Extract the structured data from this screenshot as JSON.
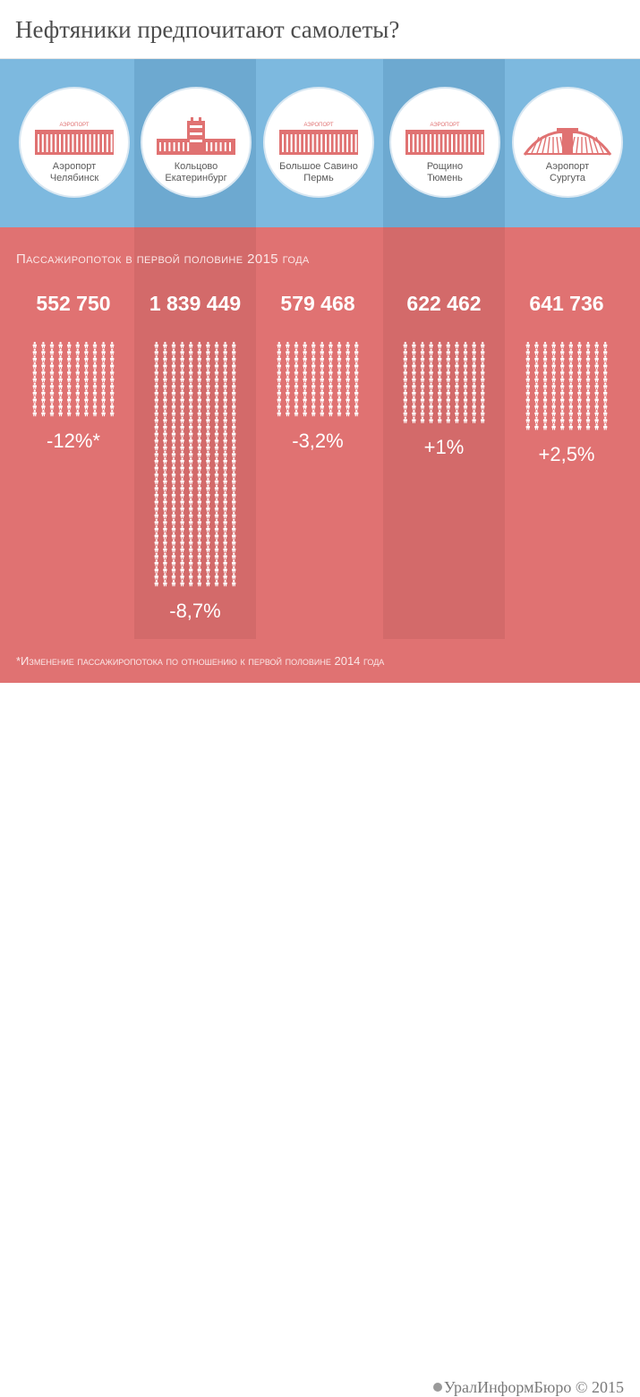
{
  "header": {
    "title": "Нефтяники предпочитают самолеты?"
  },
  "colors": {
    "accent_blue": "#7db9df",
    "accent_red": "#e07272",
    "building_red": "#e07272",
    "text_gray": "#4d4d4d",
    "white": "#ffffff"
  },
  "chart_data": {
    "type": "bar",
    "title": "Пассажиропоток в первой половине 2015 года",
    "categories": [
      {
        "line1": "Аэропорт",
        "line2": "Челябинск"
      },
      {
        "line1": "Кольцово",
        "line2": "Екатеринбург"
      },
      {
        "line1": "Большое Савино",
        "line2": "Пермь"
      },
      {
        "line1": "Рощино",
        "line2": "Тюмень"
      },
      {
        "line1": "Аэропорт",
        "line2": "Сургута"
      }
    ],
    "values": [
      552750,
      1839449,
      579468,
      622462,
      641736
    ],
    "value_labels": [
      "552 750",
      "1 839 449",
      "579 468",
      "622 462",
      "641 736"
    ],
    "changes": [
      -12,
      -8.7,
      -3.2,
      1,
      2.5
    ],
    "change_labels": [
      "-12%*",
      "-8,7%",
      "-3,2%",
      "+1%",
      "+2,5%"
    ],
    "icons": [
      "building-icon",
      "tower-icon",
      "building-icon",
      "building-icon",
      "arch-icon"
    ],
    "building_sign": "АЭРОПОРТ",
    "highlighted": [
      1,
      3
    ],
    "footnote": "*Изменение пассажиропотока по отношению к первой половине 2014 года"
  },
  "footer": {
    "credit": "УралИнформБюро © 2015"
  }
}
